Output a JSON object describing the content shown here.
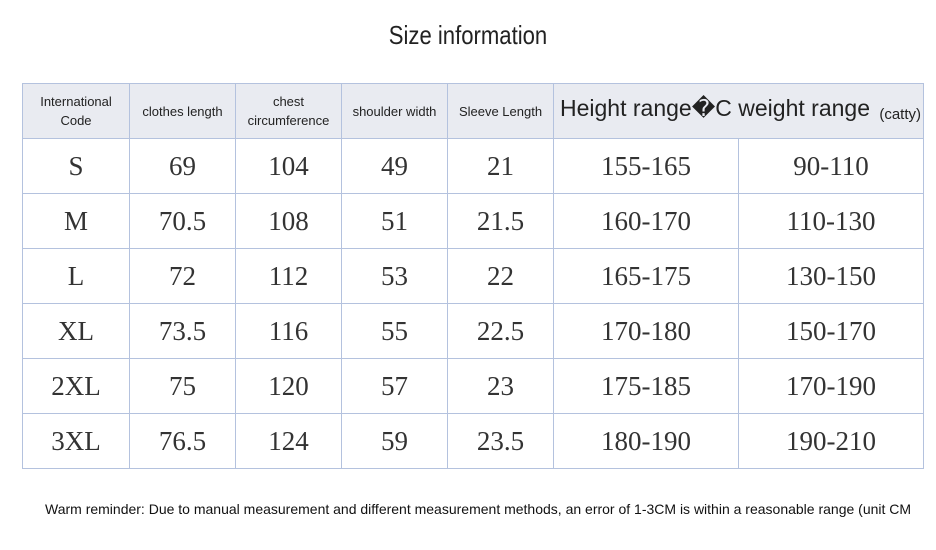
{
  "title": "Size information",
  "table": {
    "headers": [
      "International Code",
      "clothes length",
      "chest circumference",
      "shoulder width",
      "Sleeve Length",
      "Height range�C weight range"
    ],
    "unit": "(catty)",
    "rows": [
      [
        "S",
        "69",
        "104",
        "49",
        "21",
        "155-165",
        "90-110"
      ],
      [
        "M",
        "70.5",
        "108",
        "51",
        "21.5",
        "160-170",
        "110-130"
      ],
      [
        "L",
        "72",
        "112",
        "53",
        "22",
        "165-175",
        "130-150"
      ],
      [
        "XL",
        "73.5",
        "116",
        "55",
        "22.5",
        "170-180",
        "150-170"
      ],
      [
        "2XL",
        "75",
        "120",
        "57",
        "23",
        "175-185",
        "170-190"
      ],
      [
        "3XL",
        "76.5",
        "124",
        "59",
        "23.5",
        "180-190",
        "190-210"
      ]
    ]
  },
  "footer": "Warm reminder: Due to manual measurement and different measurement methods, an error of 1-3CM is within a reasonable range (unit CM"
}
